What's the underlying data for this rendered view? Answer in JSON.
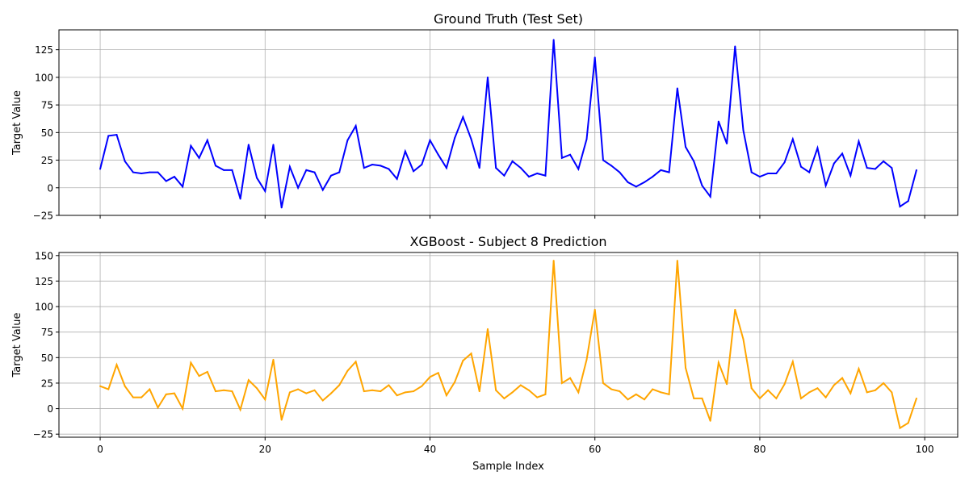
{
  "chart_data": [
    {
      "type": "line",
      "title": "Ground Truth (Test Set)",
      "xlabel": "",
      "ylabel": "Target Value",
      "xlim": [
        -5,
        104
      ],
      "ylim": [
        -25,
        143
      ],
      "x_ticks": [
        0,
        20,
        40,
        60,
        80,
        100
      ],
      "x_tick_labels_visible": false,
      "y_ticks": [
        -25,
        0,
        25,
        50,
        75,
        100,
        125
      ],
      "y_tick_labels": [
        "−25",
        "0",
        "25",
        "50",
        "75",
        "100",
        "125"
      ],
      "grid": true,
      "series": [
        {
          "color": "#0000ff",
          "x_start": 0,
          "x_step": 1,
          "values": [
            17,
            47,
            48,
            24,
            14,
            13,
            14,
            14,
            6,
            10,
            1,
            38,
            27,
            43,
            20,
            16,
            16,
            -10,
            39,
            9,
            -3,
            39,
            -18,
            19,
            0,
            16,
            14,
            -2,
            11,
            14,
            43,
            56,
            18,
            21,
            20,
            17,
            8,
            33,
            15,
            21,
            43,
            30,
            18,
            45,
            64,
            44,
            18,
            100,
            18,
            11,
            24,
            18,
            10,
            13,
            11,
            134,
            27,
            30,
            17,
            44,
            118,
            25,
            20,
            14,
            5,
            1,
            5,
            10,
            16,
            14,
            90,
            37,
            24,
            2,
            -8,
            60,
            40,
            128,
            52,
            14,
            10,
            13,
            13,
            23,
            44,
            19,
            14,
            36,
            2,
            22,
            31,
            11,
            42,
            18,
            17,
            24,
            18,
            -17,
            -12,
            16
          ]
        }
      ]
    },
    {
      "type": "line",
      "title": "XGBoost - Subject 8 Prediction",
      "xlabel": "Sample Index",
      "ylabel": "Target Value",
      "xlim": [
        -5,
        104
      ],
      "ylim": [
        -28,
        153
      ],
      "x_ticks": [
        0,
        20,
        40,
        60,
        80,
        100
      ],
      "x_tick_labels": [
        "0",
        "20",
        "40",
        "60",
        "80",
        "100"
      ],
      "y_ticks": [
        -25,
        0,
        25,
        50,
        75,
        100,
        125,
        150
      ],
      "y_tick_labels": [
        "−25",
        "0",
        "25",
        "50",
        "75",
        "100",
        "125",
        "150"
      ],
      "grid": true,
      "series": [
        {
          "color": "#ffa500",
          "x_start": 0,
          "x_step": 1,
          "values": [
            22,
            19,
            43,
            22,
            11,
            11,
            19,
            1,
            14,
            15,
            0,
            45,
            32,
            36,
            17,
            18,
            17,
            -1,
            28,
            20,
            9,
            48,
            -11,
            16,
            19,
            15,
            18,
            8,
            15,
            23,
            37,
            46,
            17,
            18,
            17,
            23,
            13,
            16,
            17,
            22,
            31,
            35,
            13,
            26,
            47,
            54,
            17,
            78,
            18,
            10,
            16,
            23,
            18,
            11,
            14,
            145,
            25,
            30,
            16,
            48,
            97,
            25,
            19,
            17,
            9,
            14,
            9,
            19,
            16,
            14,
            145,
            40,
            10,
            10,
            -12,
            45,
            24,
            97,
            68,
            20,
            10,
            18,
            10,
            24,
            46,
            10,
            16,
            20,
            11,
            23,
            30,
            15,
            39,
            16,
            18,
            25,
            16,
            -19,
            -14,
            10
          ]
        }
      ]
    }
  ]
}
